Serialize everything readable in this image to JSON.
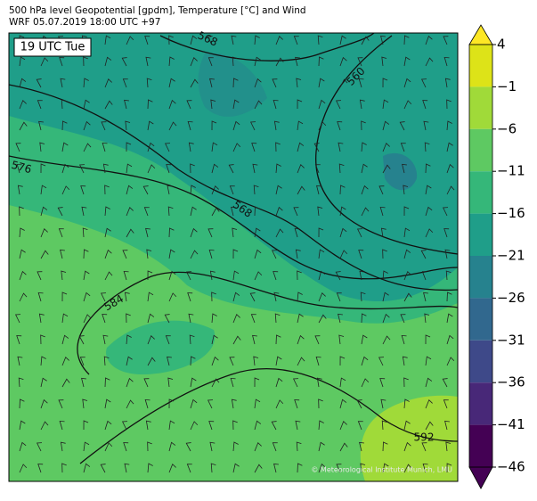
{
  "header": {
    "line1": "500 hPa level Geopotential [gpdm], Temperature [°C] and Wind",
    "line2": "WRF 05.07.2019 18:00 UTC +97"
  },
  "time_label": "19 UTC Tue",
  "contours": [
    {
      "label": "568"
    },
    {
      "label": "560"
    },
    {
      "label": "576"
    },
    {
      "label": "568"
    },
    {
      "label": "584"
    },
    {
      "label": "592"
    }
  ],
  "colorbar": {
    "ticks": [
      4,
      {
        "value": -1,
        "label": "−1"
      },
      {
        "value": -6,
        "label": "−6"
      },
      {
        "value": -11,
        "label": "−11"
      },
      {
        "value": -16,
        "label": "−16"
      },
      {
        "value": -21,
        "label": "−21"
      },
      {
        "value": -26,
        "label": "−26"
      },
      {
        "value": -31,
        "label": "−31"
      },
      {
        "value": -36,
        "label": "−36"
      },
      {
        "value": -41,
        "label": "−41"
      },
      {
        "value": -46,
        "label": "−46"
      }
    ],
    "colors": [
      "#fde725",
      "#dde318",
      "#a0da39",
      "#5ec962",
      "#35b779",
      "#1f9e89",
      "#26828e",
      "#31688e",
      "#3e4989",
      "#482878",
      "#440154",
      "#440154"
    ]
  },
  "copyright": "© Meteorological Institute Munich, LMU"
}
